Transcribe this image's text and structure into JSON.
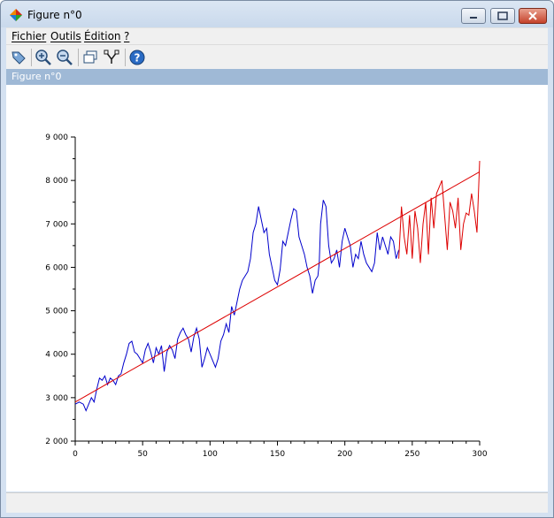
{
  "window": {
    "title": "Figure n°0"
  },
  "menu": [
    {
      "label": "Fichier"
    },
    {
      "label": "Outils"
    },
    {
      "label": "Édition"
    },
    {
      "label": "?"
    }
  ],
  "toolbar_icons": [
    "rotate-icon",
    "zoom-in-icon",
    "zoom-out-icon",
    "datatip-icon",
    "edit-axes-icon",
    "help-icon"
  ],
  "figure_header": {
    "label": "Figure n°0"
  },
  "colors": {
    "observed": "#0000cc",
    "forecast": "#dd0000",
    "trend": "#dd0000"
  },
  "chart_data": {
    "type": "line",
    "title": "",
    "xlabel": "",
    "ylabel": "",
    "xlim": [
      0,
      300
    ],
    "ylim": [
      2000,
      9000
    ],
    "x_ticks": [
      0,
      50,
      100,
      150,
      200,
      250,
      300
    ],
    "x_tick_labels": [
      "0",
      "50",
      "100",
      "150",
      "200",
      "250",
      "300"
    ],
    "y_ticks": [
      2000,
      3000,
      4000,
      5000,
      6000,
      7000,
      8000,
      9000
    ],
    "y_tick_labels": [
      "2 000",
      "3 000",
      "4 000",
      "5 000",
      "6 000",
      "7 000",
      "8 000",
      "9 000"
    ],
    "grid": false,
    "series": [
      {
        "color": "#0000cc",
        "x": [
          0,
          3,
          6,
          8,
          10,
          12,
          14,
          16,
          18,
          20,
          22,
          24,
          26,
          28,
          30,
          32,
          34,
          36,
          38,
          40,
          42,
          44,
          46,
          48,
          50,
          52,
          54,
          56,
          58,
          60,
          62,
          64,
          66,
          68,
          70,
          72,
          74,
          76,
          78,
          80,
          82,
          84,
          86,
          88,
          90,
          92,
          94,
          96,
          98,
          100,
          102,
          104,
          106,
          108,
          110,
          112,
          114,
          116,
          118,
          120,
          122,
          124,
          126,
          128,
          130,
          132,
          134,
          136,
          138,
          140,
          142,
          144,
          146,
          148,
          150,
          152,
          154,
          156,
          158,
          160,
          162,
          164,
          166,
          168,
          170,
          172,
          174,
          176,
          178,
          180,
          181,
          182,
          184,
          186,
          188,
          190,
          192,
          194,
          196,
          198,
          200,
          202,
          204,
          206,
          208,
          210,
          212,
          214,
          216,
          218,
          220,
          222,
          224,
          226,
          228,
          230,
          232,
          234,
          236,
          238,
          240
        ],
        "y": [
          2850,
          2900,
          2850,
          2700,
          2850,
          3000,
          2900,
          3200,
          3450,
          3400,
          3500,
          3300,
          3450,
          3400,
          3300,
          3500,
          3550,
          3800,
          4000,
          4250,
          4300,
          4050,
          4000,
          3900,
          3800,
          4100,
          4250,
          4050,
          3800,
          4150,
          4000,
          4200,
          3600,
          4050,
          4200,
          4100,
          3900,
          4350,
          4500,
          4600,
          4450,
          4350,
          4050,
          4400,
          4600,
          4350,
          3700,
          3900,
          4150,
          4000,
          3850,
          3700,
          3900,
          4300,
          4450,
          4700,
          4500,
          5100,
          4900,
          5200,
          5500,
          5700,
          5800,
          5900,
          6200,
          6800,
          7000,
          7400,
          7100,
          6800,
          6900,
          6300,
          6000,
          5700,
          5600,
          5950,
          6600,
          6500,
          6800,
          7100,
          7350,
          7300,
          6700,
          6500,
          6300,
          6000,
          5800,
          5400,
          5700,
          5800,
          6100,
          7000,
          7550,
          7400,
          6500,
          6100,
          6200,
          6400,
          6000,
          6600,
          6900,
          6700,
          6500,
          6000,
          6300,
          6200,
          6600,
          6300,
          6100,
          6000,
          5900,
          6100,
          6800,
          6400,
          6700,
          6500,
          6300,
          6700,
          6600,
          6200,
          6400
        ]
      },
      {
        "color": "#dd0000",
        "x": [
          240,
          242,
          244,
          246,
          248,
          250,
          252,
          254,
          256,
          258,
          260,
          262,
          264,
          266,
          268,
          270,
          272,
          274,
          276,
          278,
          280,
          282,
          284,
          286,
          288,
          290,
          292,
          294,
          296,
          298,
          300
        ],
        "y": [
          6200,
          7400,
          6700,
          6300,
          7200,
          6200,
          7300,
          6900,
          6100,
          7000,
          7500,
          6300,
          7600,
          6900,
          7700,
          7850,
          8000,
          7200,
          6400,
          7500,
          7300,
          6900,
          7600,
          6400,
          7000,
          7250,
          7200,
          7700,
          7300,
          6800,
          8450
        ]
      },
      {
        "color": "#dd0000",
        "x": [
          0,
          300
        ],
        "y": [
          2900,
          8200
        ]
      }
    ]
  }
}
